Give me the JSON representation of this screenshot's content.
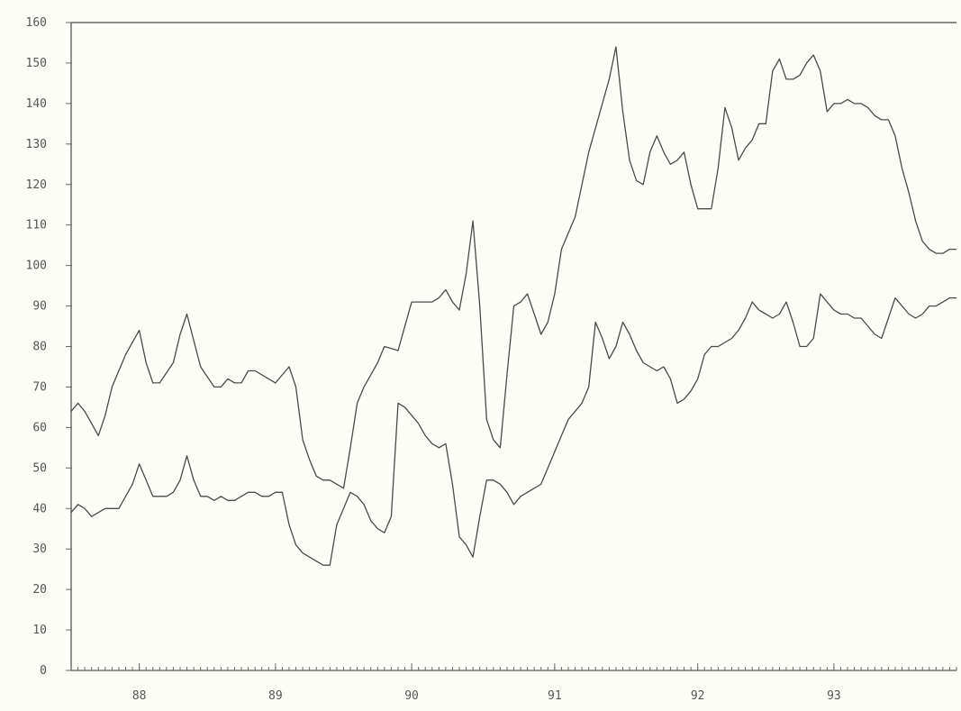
{
  "chart_data": {
    "type": "line",
    "title": "",
    "xlabel": "",
    "ylabel": "",
    "xlim": [
      0,
      130
    ],
    "ylim": [
      0,
      160
    ],
    "grid": false,
    "legend": "none",
    "y_ticks": [
      "0",
      "10",
      "20",
      "30",
      "40",
      "50",
      "60",
      "70",
      "80",
      "90",
      "100",
      "110",
      "120",
      "130",
      "140",
      "150",
      "160"
    ],
    "x_tick_labels": [
      {
        "label": "88",
        "x": 10
      },
      {
        "label": "89",
        "x": 30
      },
      {
        "label": "90",
        "x": 50
      },
      {
        "label": "91",
        "x": 71
      },
      {
        "label": "92",
        "x": 92
      },
      {
        "label": "93",
        "x": 112
      }
    ],
    "series": [
      {
        "points": [
          [
            0,
            64
          ],
          [
            1,
            66
          ],
          [
            2,
            64
          ],
          [
            3,
            61
          ],
          [
            4,
            58
          ],
          [
            5,
            63
          ],
          [
            6,
            70
          ],
          [
            8,
            78
          ],
          [
            10,
            84
          ],
          [
            11,
            76
          ],
          [
            12,
            71
          ],
          [
            13,
            71
          ],
          [
            15,
            76
          ],
          [
            16,
            83
          ],
          [
            17,
            88
          ],
          [
            19,
            75
          ],
          [
            21,
            70
          ],
          [
            22,
            70
          ],
          [
            23,
            72
          ],
          [
            24,
            71
          ],
          [
            25,
            71
          ],
          [
            26,
            74
          ],
          [
            27,
            74
          ],
          [
            29,
            72
          ],
          [
            30,
            71
          ],
          [
            31,
            73
          ],
          [
            32,
            75
          ],
          [
            33,
            70
          ],
          [
            34,
            57
          ],
          [
            35,
            52
          ],
          [
            36,
            48
          ],
          [
            37,
            47
          ],
          [
            38,
            47
          ],
          [
            39,
            46
          ],
          [
            40,
            45
          ],
          [
            41,
            55
          ],
          [
            42,
            66
          ],
          [
            43,
            70
          ],
          [
            45,
            76
          ],
          [
            46,
            80
          ],
          [
            48,
            79
          ],
          [
            49,
            85
          ],
          [
            50,
            91
          ],
          [
            51,
            91
          ],
          [
            52,
            91
          ],
          [
            53,
            91
          ],
          [
            54,
            92
          ],
          [
            55,
            94
          ],
          [
            56,
            91
          ],
          [
            57,
            89
          ],
          [
            58,
            98
          ],
          [
            59,
            111
          ],
          [
            60,
            90
          ],
          [
            61,
            62
          ],
          [
            62,
            57
          ],
          [
            63,
            55
          ],
          [
            64,
            73
          ],
          [
            65,
            90
          ],
          [
            66,
            91
          ],
          [
            67,
            93
          ],
          [
            68,
            88
          ],
          [
            69,
            83
          ],
          [
            70,
            86
          ],
          [
            71,
            93
          ],
          [
            72,
            104
          ],
          [
            74,
            112
          ],
          [
            76,
            128
          ],
          [
            78,
            140
          ],
          [
            79,
            146
          ],
          [
            80,
            154
          ],
          [
            81,
            138
          ],
          [
            82,
            126
          ],
          [
            83,
            121
          ],
          [
            84,
            120
          ],
          [
            85,
            128
          ],
          [
            86,
            132
          ],
          [
            87,
            128
          ],
          [
            88,
            125
          ],
          [
            89,
            126
          ],
          [
            90,
            128
          ],
          [
            91,
            120
          ],
          [
            92,
            114
          ],
          [
            93,
            114
          ],
          [
            94,
            114
          ],
          [
            95,
            124
          ],
          [
            96,
            139
          ],
          [
            97,
            134
          ],
          [
            98,
            126
          ],
          [
            99,
            129
          ],
          [
            100,
            131
          ],
          [
            101,
            135
          ],
          [
            102,
            135
          ],
          [
            103,
            148
          ],
          [
            104,
            151
          ],
          [
            105,
            146
          ],
          [
            106,
            146
          ],
          [
            107,
            147
          ],
          [
            108,
            150
          ],
          [
            109,
            152
          ],
          [
            110,
            148
          ],
          [
            111,
            138
          ],
          [
            112,
            140
          ],
          [
            113,
            140
          ],
          [
            114,
            141
          ],
          [
            115,
            140
          ],
          [
            116,
            140
          ],
          [
            117,
            139
          ],
          [
            118,
            137
          ],
          [
            119,
            136
          ],
          [
            120,
            136
          ],
          [
            121,
            132
          ],
          [
            122,
            124
          ],
          [
            123,
            118
          ],
          [
            124,
            111
          ],
          [
            125,
            106
          ],
          [
            126,
            104
          ],
          [
            127,
            103
          ],
          [
            128,
            103
          ],
          [
            129,
            104
          ],
          [
            130,
            104
          ]
        ]
      },
      {
        "points": [
          [
            0,
            39
          ],
          [
            1,
            41
          ],
          [
            2,
            40
          ],
          [
            3,
            38
          ],
          [
            4,
            39
          ],
          [
            5,
            40
          ],
          [
            6,
            40
          ],
          [
            7,
            40
          ],
          [
            8,
            43
          ],
          [
            9,
            46
          ],
          [
            10,
            51
          ],
          [
            11,
            47
          ],
          [
            12,
            43
          ],
          [
            13,
            43
          ],
          [
            14,
            43
          ],
          [
            15,
            44
          ],
          [
            16,
            47
          ],
          [
            17,
            53
          ],
          [
            18,
            47
          ],
          [
            19,
            43
          ],
          [
            20,
            43
          ],
          [
            21,
            42
          ],
          [
            22,
            43
          ],
          [
            23,
            42
          ],
          [
            24,
            42
          ],
          [
            25,
            43
          ],
          [
            26,
            44
          ],
          [
            27,
            44
          ],
          [
            28,
            43
          ],
          [
            29,
            43
          ],
          [
            30,
            44
          ],
          [
            31,
            44
          ],
          [
            32,
            36
          ],
          [
            33,
            31
          ],
          [
            34,
            29
          ],
          [
            35,
            28
          ],
          [
            36,
            27
          ],
          [
            37,
            26
          ],
          [
            38,
            26
          ],
          [
            39,
            36
          ],
          [
            40,
            40
          ],
          [
            41,
            44
          ],
          [
            42,
            43
          ],
          [
            43,
            41
          ],
          [
            44,
            37
          ],
          [
            45,
            35
          ],
          [
            46,
            34
          ],
          [
            47,
            38
          ],
          [
            48,
            66
          ],
          [
            49,
            65
          ],
          [
            50,
            63
          ],
          [
            51,
            61
          ],
          [
            52,
            58
          ],
          [
            53,
            56
          ],
          [
            54,
            55
          ],
          [
            55,
            56
          ],
          [
            56,
            46
          ],
          [
            57,
            33
          ],
          [
            58,
            31
          ],
          [
            59,
            28
          ],
          [
            60,
            38
          ],
          [
            61,
            47
          ],
          [
            62,
            47
          ],
          [
            63,
            46
          ],
          [
            64,
            44
          ],
          [
            65,
            41
          ],
          [
            66,
            43
          ],
          [
            67,
            44
          ],
          [
            68,
            45
          ],
          [
            69,
            46
          ],
          [
            70,
            50
          ],
          [
            71,
            54
          ],
          [
            72,
            58
          ],
          [
            73,
            62
          ],
          [
            74,
            64
          ],
          [
            75,
            66
          ],
          [
            76,
            70
          ],
          [
            77,
            86
          ],
          [
            78,
            82
          ],
          [
            79,
            77
          ],
          [
            80,
            80
          ],
          [
            81,
            86
          ],
          [
            82,
            83
          ],
          [
            83,
            79
          ],
          [
            84,
            76
          ],
          [
            85,
            75
          ],
          [
            86,
            74
          ],
          [
            87,
            75
          ],
          [
            88,
            72
          ],
          [
            89,
            66
          ],
          [
            90,
            67
          ],
          [
            91,
            69
          ],
          [
            92,
            72
          ],
          [
            93,
            78
          ],
          [
            94,
            80
          ],
          [
            95,
            80
          ],
          [
            96,
            81
          ],
          [
            97,
            82
          ],
          [
            98,
            84
          ],
          [
            99,
            87
          ],
          [
            100,
            91
          ],
          [
            101,
            89
          ],
          [
            102,
            88
          ],
          [
            103,
            87
          ],
          [
            104,
            88
          ],
          [
            105,
            91
          ],
          [
            106,
            86
          ],
          [
            107,
            80
          ],
          [
            108,
            80
          ],
          [
            109,
            82
          ],
          [
            110,
            93
          ],
          [
            111,
            91
          ],
          [
            112,
            89
          ],
          [
            113,
            88
          ],
          [
            114,
            88
          ],
          [
            115,
            87
          ],
          [
            116,
            87
          ],
          [
            117,
            85
          ],
          [
            118,
            83
          ],
          [
            119,
            82
          ],
          [
            120,
            87
          ],
          [
            121,
            92
          ],
          [
            122,
            90
          ],
          [
            123,
            88
          ],
          [
            124,
            87
          ],
          [
            125,
            88
          ],
          [
            126,
            90
          ],
          [
            127,
            90
          ],
          [
            128,
            91
          ],
          [
            129,
            92
          ],
          [
            130,
            92
          ]
        ]
      }
    ]
  }
}
